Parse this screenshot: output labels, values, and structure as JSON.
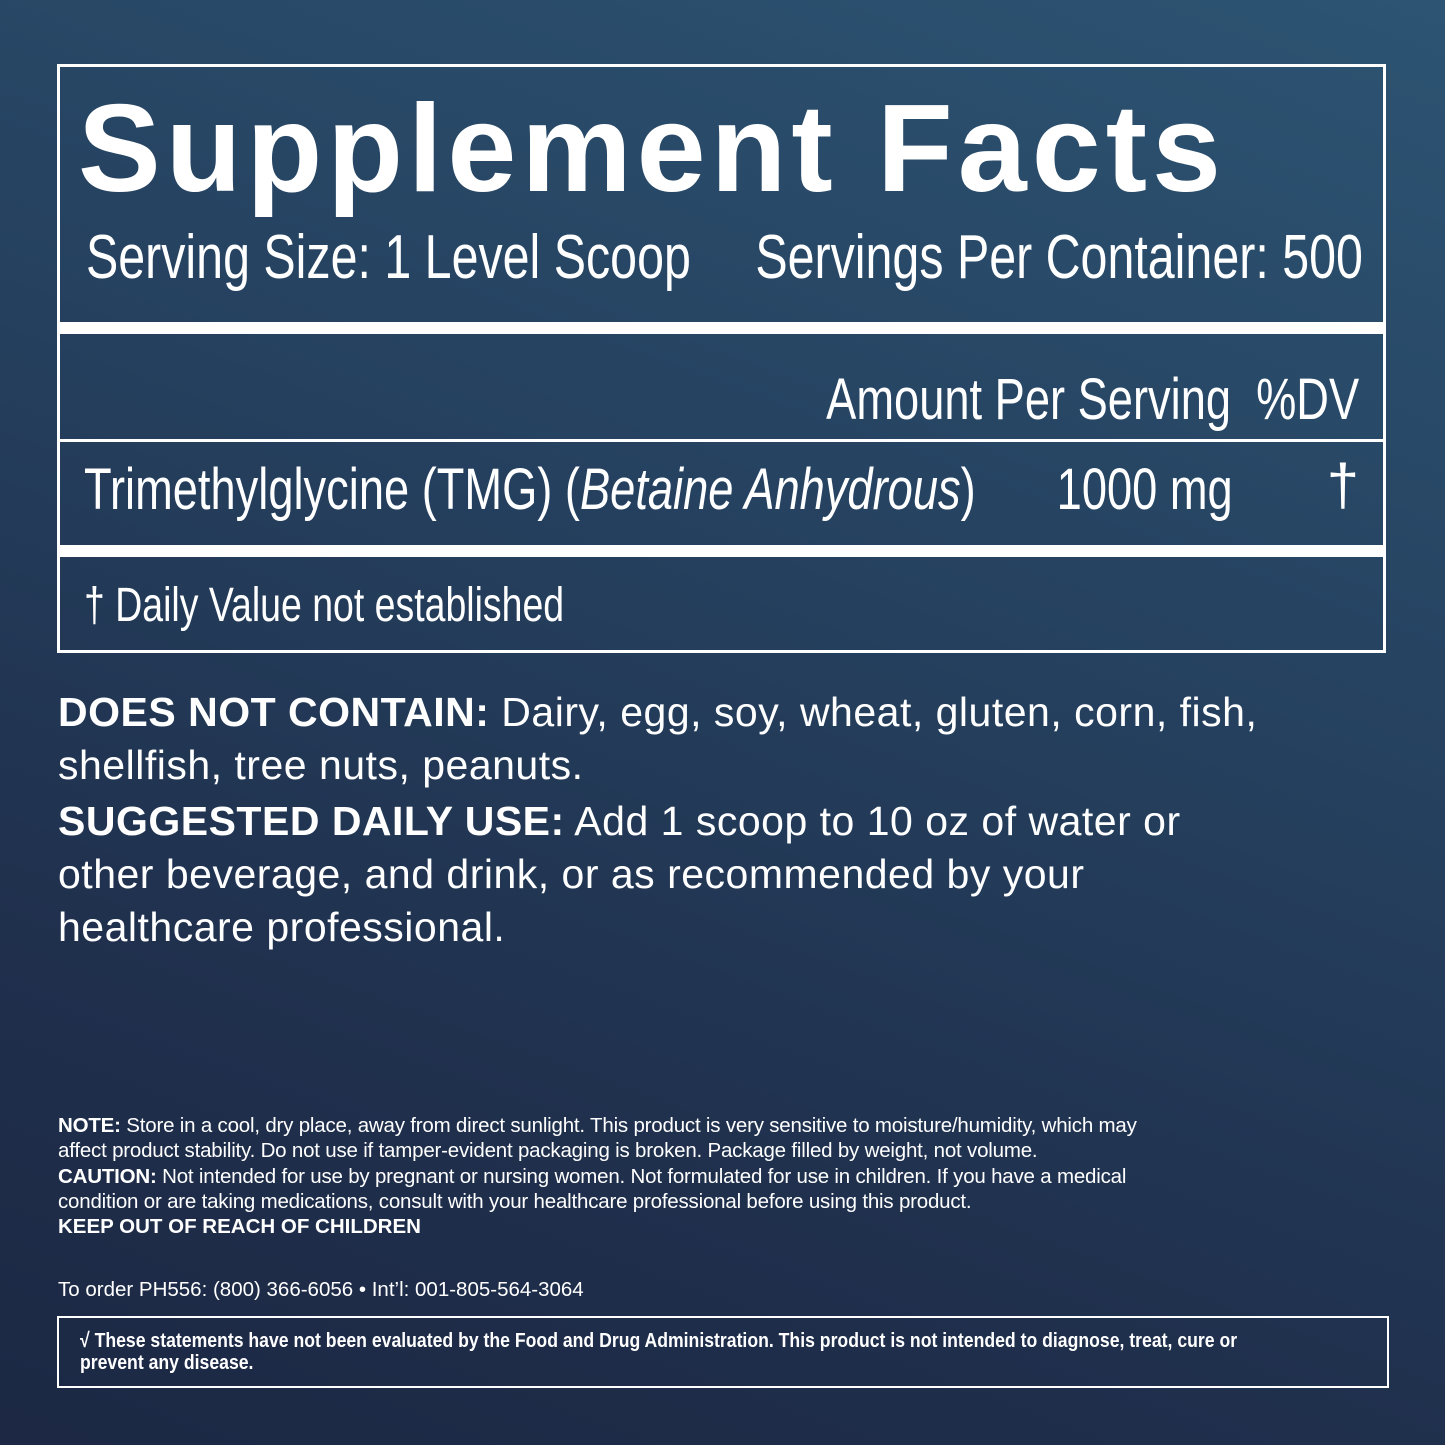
{
  "label": {
    "title": "Supplement Facts",
    "serving_size": "Serving Size: 1 Level Scoop",
    "servings_per_container": "Servings Per Container: 500",
    "amount_header": "Amount Per Serving",
    "dv_header": "%DV",
    "ingredients": [
      {
        "name": "Trimethylglycine (TMG) (",
        "name_italic": "Betaine Anhydrous",
        "name_close": ")",
        "amount": "1000 mg",
        "dv": "†"
      }
    ],
    "footnote": "† Daily Value not established"
  },
  "does_not_contain": {
    "heading": "DOES NOT CONTAIN:",
    "text_line1": " Dairy, egg, soy, wheat, gluten, corn, fish,",
    "text_line2": "shellfish, tree nuts, peanuts."
  },
  "suggested_use": {
    "heading": "SUGGESTED DAILY USE:",
    "text_line1": " Add 1 scoop to 10 oz of water or",
    "text_line2": "other beverage, and drink, or as recommended by your",
    "text_line3": "healthcare professional."
  },
  "note": {
    "heading": "NOTE:",
    "line1": " Store in a cool, dry place, away from direct sunlight. This product is very sensitive to moisture/humidity, which may",
    "line2": "affect product stability. Do not use if tamper-evident packaging is broken. Package filled by weight, not volume."
  },
  "caution": {
    "heading": "CAUTION:",
    "line1": " Not intended for use by pregnant or nursing women. Not formulated for use in children. If you have a medical",
    "line2": "condition or are taking medications, consult with your healthcare professional before using this product."
  },
  "keep_out": "KEEP OUT OF REACH OF CHILDREN",
  "order_info": "To order PH556: (800) 366-6056 • Int’l: 001-805-564-3064",
  "disclaimer": {
    "line1": "√ These statements have not been evaluated by the Food and Drug Administration. This product is not intended to diagnose, treat, cure or",
    "line2": "prevent any disease."
  }
}
